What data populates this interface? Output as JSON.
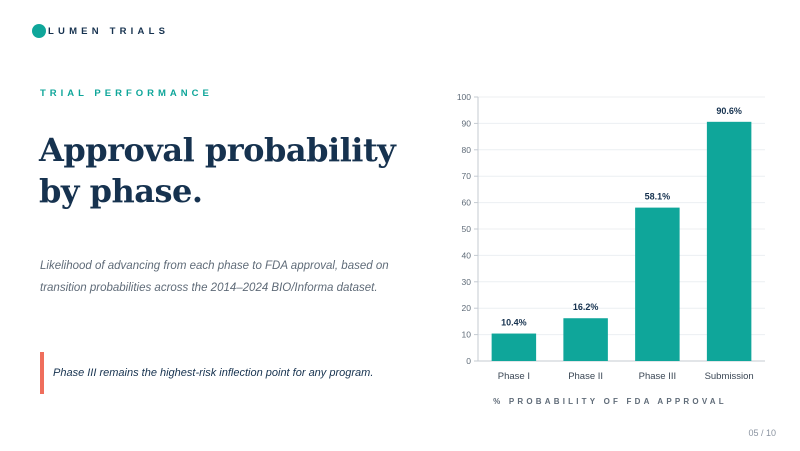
{
  "brand": {
    "name": "LUMEN TRIALS",
    "color": "#0fa69a"
  },
  "eyebrow": "TRIAL PERFORMANCE",
  "title_line1": "Approval probability",
  "title_line2": "by phase.",
  "subtitle_line1": "Likelihood of advancing from each phase to FDA approval, based on",
  "subtitle_line2": "transition probabilities across the 2014–2024 BIO/Informa dataset.",
  "callout": {
    "text": "Phase III remains the highest-risk inflection point for any program.",
    "accent_color": "#ef6e5c"
  },
  "page_number": "05 / 10",
  "chart_data": {
    "type": "bar",
    "categories": [
      "Phase I",
      "Phase II",
      "Phase III",
      "Submission"
    ],
    "values": [
      10.4,
      16.2,
      58.1,
      90.6
    ],
    "data_labels": [
      "10.4%",
      "16.2%",
      "58.1%",
      "90.6%"
    ],
    "xlabel": "% PROBABILITY OF FDA APPROVAL",
    "ylabel": "",
    "ylim": [
      0,
      100
    ],
    "yticks": [
      0,
      10,
      20,
      30,
      40,
      50,
      60,
      70,
      80,
      90,
      100
    ],
    "grid": true,
    "bar_color": "#0fa69a"
  }
}
